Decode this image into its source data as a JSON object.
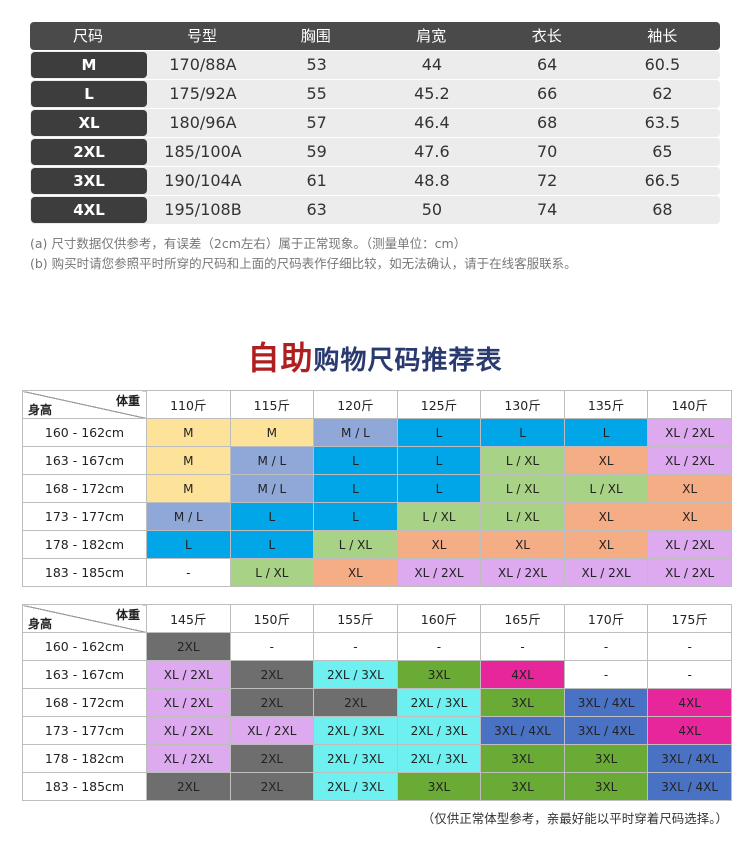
{
  "size_table": {
    "headers": [
      "尺码",
      "号型",
      "胸围",
      "肩宽",
      "衣长",
      "袖长"
    ],
    "rows": [
      [
        "M",
        "170/88A",
        "53",
        "44",
        "64",
        "60.5"
      ],
      [
        "L",
        "175/92A",
        "55",
        "45.2",
        "66",
        "62"
      ],
      [
        "XL",
        "180/96A",
        "57",
        "46.4",
        "68",
        "63.5"
      ],
      [
        "2XL",
        "185/100A",
        "59",
        "47.6",
        "70",
        "65"
      ],
      [
        "3XL",
        "190/104A",
        "61",
        "48.8",
        "72",
        "66.5"
      ],
      [
        "4XL",
        "195/108B",
        "63",
        "50",
        "74",
        "68"
      ]
    ]
  },
  "notes": {
    "a": "(a) 尺寸数据仅供参考，有误差（2cm左右）属于正常现象。（测量单位：cm）",
    "b": "(b) 购买时请您参照平时所穿的尺码和上面的尺码表作仔细比较，如无法确认，请于在线客服联系。"
  },
  "title": {
    "highlight": "自助",
    "rest": "购物尺码推荐表"
  },
  "corner": {
    "weight": "体重",
    "height": "身高"
  },
  "heights": [
    "160 - 162cm",
    "163 - 167cm",
    "168 - 172cm",
    "173 - 177cm",
    "178 - 182cm",
    "183 - 185cm"
  ],
  "grid1": {
    "weights": [
      "110斤",
      "115斤",
      "120斤",
      "125斤",
      "130斤",
      "135斤",
      "140斤"
    ],
    "rows": [
      [
        "M",
        "M",
        "M / L",
        "L",
        "L",
        "L",
        "XL / 2XL"
      ],
      [
        "M",
        "M / L",
        "L",
        "L",
        "L / XL",
        "XL",
        "XL / 2XL"
      ],
      [
        "M",
        "M / L",
        "L",
        "L",
        "L / XL",
        "L / XL",
        "XL"
      ],
      [
        "M / L",
        "L",
        "L",
        "L / XL",
        "L / XL",
        "XL",
        "XL"
      ],
      [
        "L",
        "L",
        "L / XL",
        "XL",
        "XL",
        "XL",
        "XL / 2XL"
      ],
      [
        "-",
        "L / XL",
        "XL",
        "XL / 2XL",
        "XL / 2XL",
        "XL / 2XL",
        "XL / 2XL"
      ]
    ]
  },
  "grid2": {
    "weights": [
      "145斤",
      "150斤",
      "155斤",
      "160斤",
      "165斤",
      "170斤",
      "175斤"
    ],
    "rows": [
      [
        "2XL",
        "-",
        "-",
        "-",
        "-",
        "-",
        "-"
      ],
      [
        "XL / 2XL",
        "2XL",
        "2XL / 3XL",
        "3XL",
        "4XL",
        "-",
        "-"
      ],
      [
        "XL / 2XL",
        "2XL",
        "2XL",
        "2XL / 3XL",
        "3XL",
        "3XL / 4XL",
        "4XL"
      ],
      [
        "XL / 2XL",
        "XL / 2XL",
        "2XL / 3XL",
        "2XL / 3XL",
        "3XL / 4XL",
        "3XL / 4XL",
        "4XL"
      ],
      [
        "XL / 2XL",
        "2XL",
        "2XL / 3XL",
        "2XL / 3XL",
        "3XL",
        "3XL",
        "3XL / 4XL"
      ],
      [
        "2XL",
        "2XL",
        "2XL / 3XL",
        "3XL",
        "3XL",
        "3XL",
        "3XL / 4XL"
      ]
    ]
  },
  "size_colors": {
    "M": "#fde29a",
    "M / L": "#8fa8d8",
    "L": "#00a6e8",
    "L / XL": "#a8d285",
    "XL": "#f5ad85",
    "XL / 2XL": "#ddaaf0",
    "2XL": "#6e6e6e",
    "2XL / 3XL": "#6ef0f0",
    "3XL": "#6aab35",
    "4XL": "#e7269c",
    "3XL / 4XL": "#4a72c4",
    "-": "#ffffff"
  },
  "footnote": "（仅供正常体型参考，亲最好能以平时穿着尺码选择。）"
}
